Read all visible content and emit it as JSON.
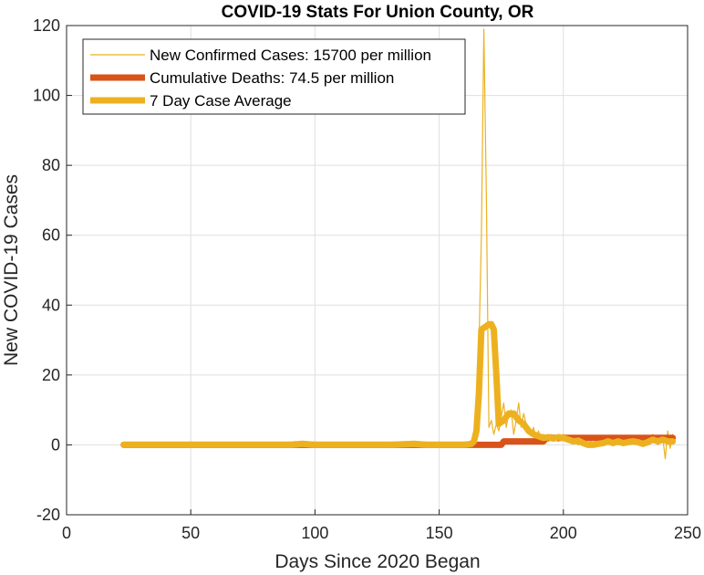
{
  "chart_data": {
    "type": "line",
    "title": "COVID-19 Stats For Union County, OR",
    "xlabel": "Days Since 2020 Began",
    "ylabel": "New COVID-19 Cases",
    "xlim": [
      0,
      250
    ],
    "ylim": [
      -20,
      120
    ],
    "xticks": [
      0,
      50,
      100,
      150,
      200,
      250
    ],
    "yticks": [
      -20,
      0,
      20,
      40,
      60,
      80,
      100,
      120
    ],
    "grid": true,
    "legend_position": "top-left",
    "series": [
      {
        "name": "New Confirmed Cases: 15700 per million",
        "color": "#EDB120",
        "style": "thin",
        "x": [
          23,
          80,
          90,
          92,
          93,
          95,
          100,
          105,
          110,
          120,
          130,
          138,
          140,
          142,
          150,
          160,
          163,
          164,
          165,
          166,
          167,
          168,
          169,
          170,
          171,
          172,
          173,
          174,
          175,
          176,
          177,
          178,
          179,
          180,
          181,
          182,
          183,
          184,
          185,
          186,
          187,
          188,
          189,
          190,
          191,
          192,
          193,
          194,
          195,
          196,
          198,
          200,
          202,
          204,
          206,
          208,
          210,
          212,
          214,
          216,
          218,
          220,
          222,
          224,
          226,
          228,
          230,
          232,
          234,
          236,
          238,
          240,
          241,
          242,
          243,
          244
        ],
        "values": [
          0,
          0,
          0,
          1,
          0,
          0,
          0,
          0,
          0,
          0,
          0,
          0,
          1,
          0,
          0,
          0,
          1,
          3,
          10,
          28,
          60,
          119,
          70,
          5,
          7,
          3,
          6,
          4,
          8,
          12,
          5,
          9,
          10,
          3,
          7,
          12,
          5,
          9,
          6,
          4,
          3,
          5,
          2,
          4,
          1,
          3,
          2,
          1,
          3,
          2,
          1,
          3,
          2,
          1,
          0,
          1,
          0,
          2,
          1,
          0,
          1,
          2,
          0,
          1,
          1,
          2,
          0,
          2,
          1,
          3,
          0,
          2,
          -4,
          4,
          -1,
          3
        ]
      },
      {
        "name": "Cumulative Deaths: 74.5 per million",
        "color": "#D95319",
        "style": "thick",
        "x": [
          23,
          160,
          164,
          165,
          175,
          176,
          192,
          193,
          244
        ],
        "values": [
          0,
          0,
          0,
          0,
          0,
          1,
          1,
          2,
          2
        ]
      },
      {
        "name": "7 Day Case Average",
        "color": "#EDB120",
        "style": "thick",
        "x": [
          23,
          80,
          90,
          95,
          100,
          110,
          130,
          140,
          145,
          150,
          160,
          163,
          164,
          165,
          166,
          167,
          168,
          169,
          170,
          171,
          172,
          173,
          174,
          175,
          176,
          177,
          178,
          179,
          180,
          181,
          182,
          184,
          186,
          188,
          190,
          192,
          194,
          196,
          198,
          200,
          202,
          204,
          206,
          208,
          210,
          212,
          214,
          216,
          218,
          220,
          222,
          224,
          226,
          228,
          230,
          232,
          234,
          236,
          238,
          240,
          242,
          244
        ],
        "values": [
          0,
          0,
          0,
          0.3,
          0,
          0,
          0,
          0.3,
          0,
          0,
          0,
          0.3,
          1,
          4,
          15,
          33,
          33.5,
          34,
          34.5,
          34.5,
          33,
          20,
          6,
          6.5,
          7,
          8,
          9,
          8.8,
          9,
          8,
          7,
          6,
          4,
          3,
          2.5,
          2,
          2.2,
          1.8,
          2.2,
          2,
          1.5,
          1,
          1.2,
          0.5,
          0,
          0,
          0.3,
          0.5,
          1,
          0.5,
          1,
          0.5,
          0.8,
          1,
          0.8,
          0.3,
          0.8,
          1.5,
          1,
          1.5,
          1,
          1
        ]
      }
    ]
  }
}
